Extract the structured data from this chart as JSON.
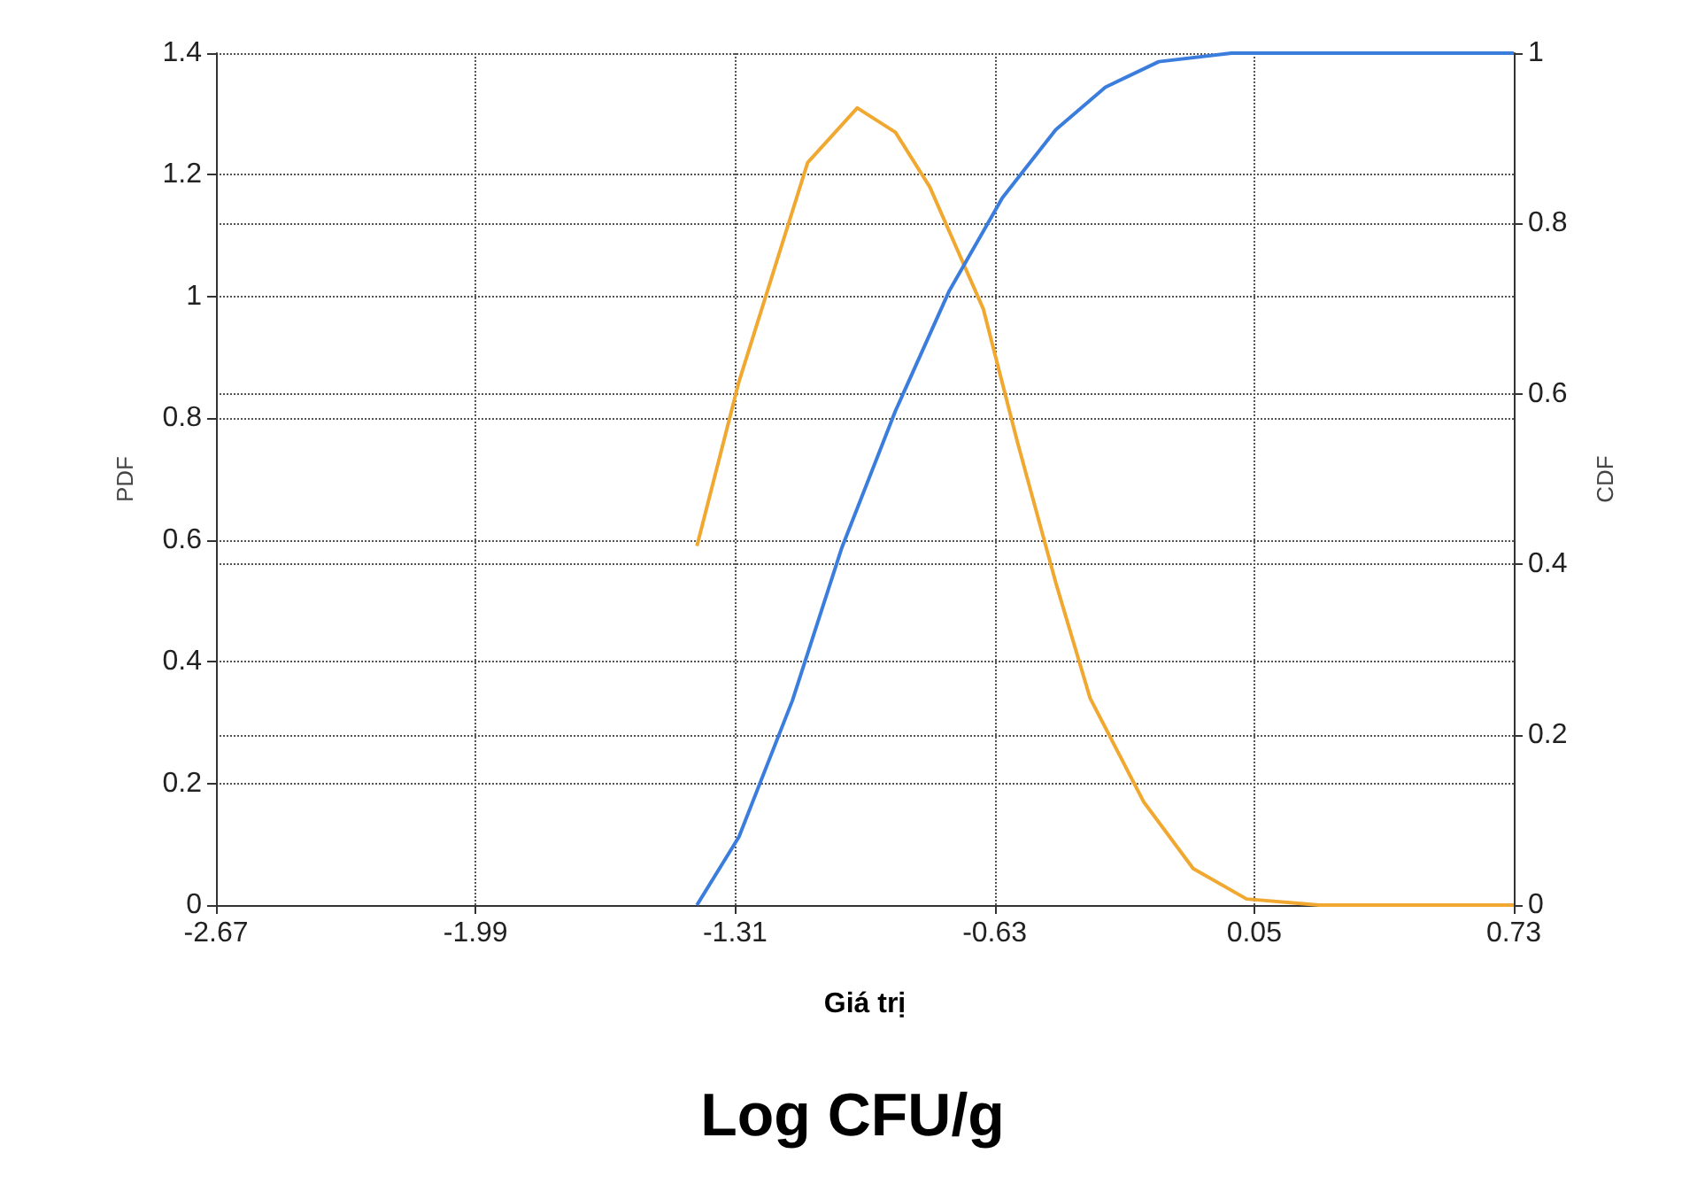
{
  "chart_data": {
    "type": "line",
    "xlabel": "Giá trị",
    "ylabel": "PDF",
    "y2label": "CDF",
    "annotations": [
      "Log CFU/g"
    ],
    "xlim": [
      -2.67,
      0.73
    ],
    "xticks": [
      -2.67,
      -1.99,
      -1.31,
      -0.63,
      0.05,
      0.73
    ],
    "ylim": [
      0,
      1.4
    ],
    "yticks": [
      0,
      0.2,
      0.4,
      0.6,
      0.8,
      1,
      1.2,
      1.4
    ],
    "y2lim": [
      0,
      1
    ],
    "y2ticks": [
      0,
      0.2,
      0.4,
      0.6,
      0.8,
      1
    ],
    "grid": true,
    "marker": "none",
    "line_style": "solid",
    "series": [
      {
        "color": "#f0a830",
        "x": [
          -1.41,
          -1.3,
          -1.21,
          -1.12,
          -0.99,
          -0.89,
          -0.8,
          -0.66,
          -0.57,
          -0.47,
          -0.38,
          -0.24,
          -0.11,
          0.03,
          0.22,
          0.73
        ],
        "values": [
          0.59,
          0.86,
          1.04,
          1.22,
          1.31,
          1.27,
          1.18,
          0.98,
          0.76,
          0.53,
          0.34,
          0.17,
          0.06,
          0.01,
          0,
          0
        ]
      },
      {
        "color": "#3b7ddd",
        "axis": "y2",
        "x": [
          -1.41,
          -1.3,
          -1.16,
          -1.03,
          -0.89,
          -0.75,
          -0.61,
          -0.47,
          -0.34,
          -0.2,
          -0.01,
          0.73
        ],
        "values": [
          0,
          0.08,
          0.24,
          0.42,
          0.58,
          0.72,
          0.83,
          0.91,
          0.96,
          0.99,
          1,
          1
        ]
      }
    ]
  }
}
